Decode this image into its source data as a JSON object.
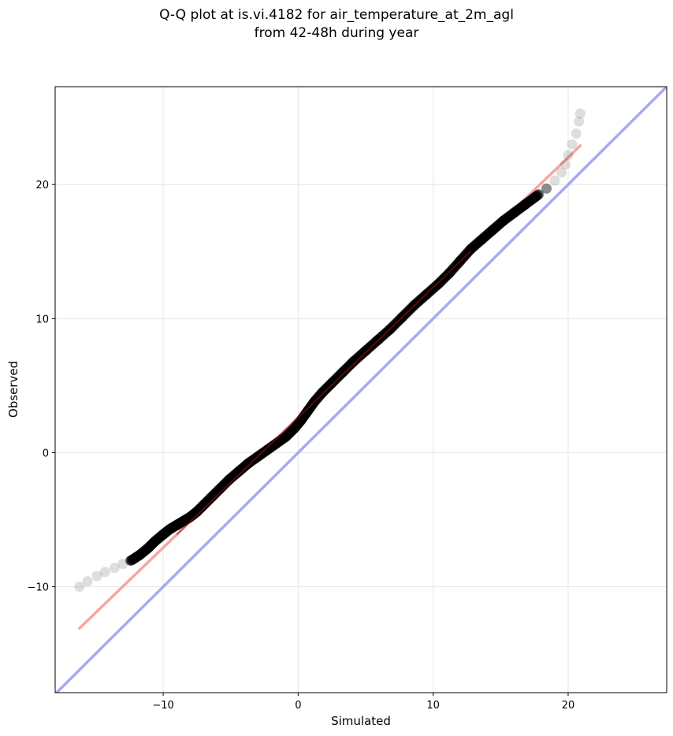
{
  "chart_data": {
    "type": "scatter",
    "title_line_1": "Q-Q plot at is.vi.4182 for air_temperature_at_2m_agl",
    "title_line_2": "from 42-48h during year",
    "xlabel": "Simulated",
    "ylabel": "Observed",
    "xlim": [
      -18,
      27.3
    ],
    "ylim": [
      -17.9,
      27.3
    ],
    "x_ticks": [
      -10,
      0,
      10,
      20
    ],
    "y_ticks": [
      -10,
      0,
      10,
      20
    ],
    "x_tick_labels": [
      "−10",
      "0",
      "10",
      "20"
    ],
    "y_tick_labels": [
      "−10",
      "0",
      "10",
      "20"
    ],
    "grid": true,
    "colors": {
      "points": "#000000",
      "fit_line": "#f4a6a6",
      "fit_line_center": "#a01010",
      "identity_line": "#a8a8f4"
    },
    "identity_line": {
      "slope": 1,
      "intercept": 0
    },
    "fit_line": {
      "x_start": -16.2,
      "y_start": -13.1,
      "x_end": 20.9,
      "y_end": 22.9
    },
    "series": [
      {
        "x": [
          -16.2,
          -15.6,
          -14.9,
          -14.3,
          -13.6,
          -13.0,
          -12.3,
          -11.7,
          -11.1,
          -10.6,
          -10.0,
          -9.5,
          -9.0,
          -8.5,
          -8.0,
          -7.5,
          -7.0,
          -6.4,
          -5.8,
          -5.1,
          -4.4,
          -3.7,
          -3.0,
          -2.3,
          -1.6,
          -0.9,
          -0.3,
          0.2,
          0.7,
          1.2,
          1.8,
          2.5,
          3.3,
          4.1,
          5.0,
          5.9,
          6.8,
          7.7,
          8.6,
          9.5,
          10.4,
          11.2,
          12.0,
          12.8,
          13.6,
          14.4,
          15.2,
          16.0,
          16.8,
          17.6,
          18.4,
          19.0,
          19.5,
          19.8,
          20.0,
          20.3,
          20.6,
          20.8,
          20.9
        ],
        "y": [
          -10.0,
          -9.6,
          -9.2,
          -8.9,
          -8.6,
          -8.3,
          -8.0,
          -7.6,
          -7.1,
          -6.6,
          -6.1,
          -5.7,
          -5.4,
          -5.1,
          -4.8,
          -4.4,
          -3.9,
          -3.3,
          -2.7,
          -2.0,
          -1.4,
          -0.8,
          -0.3,
          0.2,
          0.7,
          1.2,
          1.8,
          2.4,
          3.1,
          3.8,
          4.5,
          5.2,
          6.0,
          6.8,
          7.6,
          8.4,
          9.2,
          10.1,
          11.0,
          11.8,
          12.6,
          13.4,
          14.3,
          15.2,
          15.9,
          16.6,
          17.3,
          17.9,
          18.5,
          19.1,
          19.7,
          20.3,
          20.9,
          21.5,
          22.2,
          23.0,
          23.8,
          24.7,
          25.3
        ]
      }
    ]
  }
}
